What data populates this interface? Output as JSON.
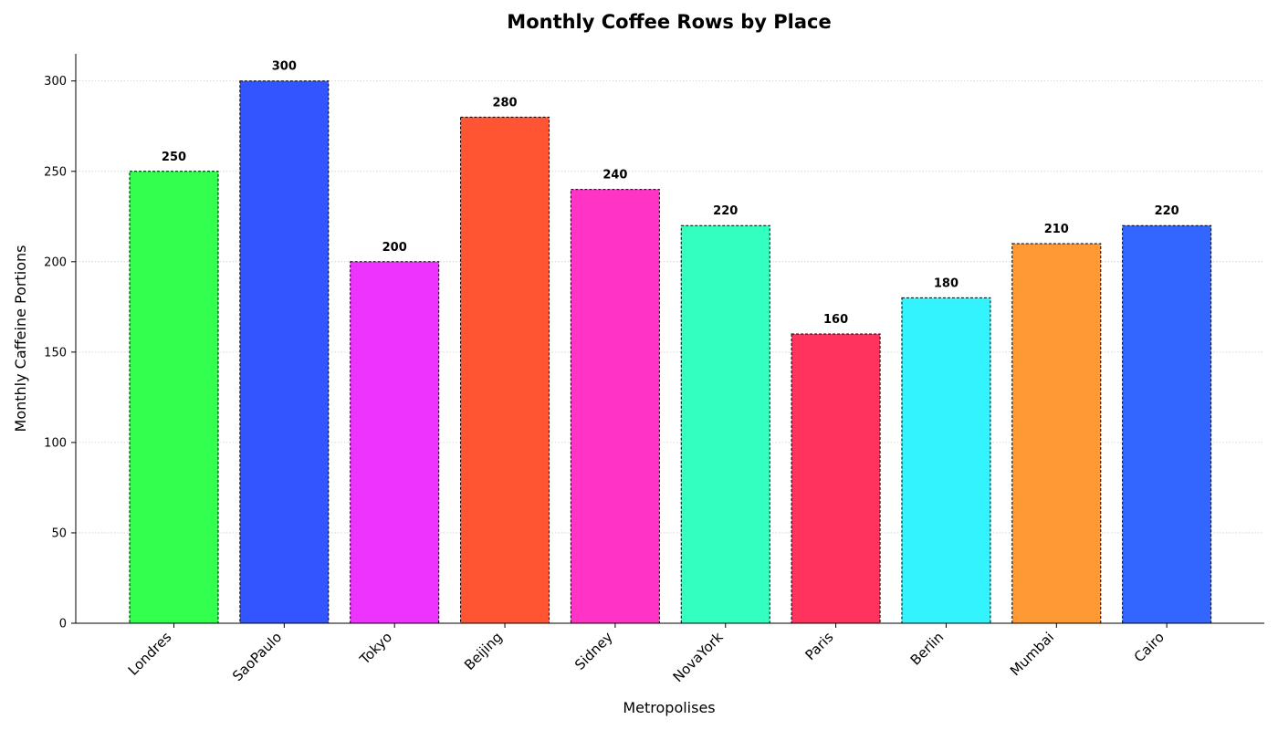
{
  "chart_data": {
    "type": "bar",
    "title": "Monthly Coffee Rows by Place",
    "xlabel": "Metropolises",
    "ylabel": "Monthly Caffeine Portions",
    "categories": [
      "Londres",
      "SaoPaulo",
      "Tokyo",
      "Beijing",
      "Sidney",
      "NovaYork",
      "Paris",
      "Berlin",
      "Mumbai",
      "Cairo"
    ],
    "values": [
      250,
      300,
      200,
      280,
      240,
      220,
      160,
      180,
      210,
      220
    ],
    "colors": [
      "#33ff4f",
      "#3355ff",
      "#ef33ff",
      "#ff5533",
      "#ff33c5",
      "#33ffc1",
      "#ff335e",
      "#33f3ff",
      "#ff9933",
      "#3366ff"
    ],
    "ylim": [
      0,
      315
    ],
    "yticks": [
      0,
      50,
      100,
      150,
      200,
      250,
      300
    ],
    "grid": "horizontal",
    "bar_edge": "dashed-black",
    "data_labels": true
  }
}
